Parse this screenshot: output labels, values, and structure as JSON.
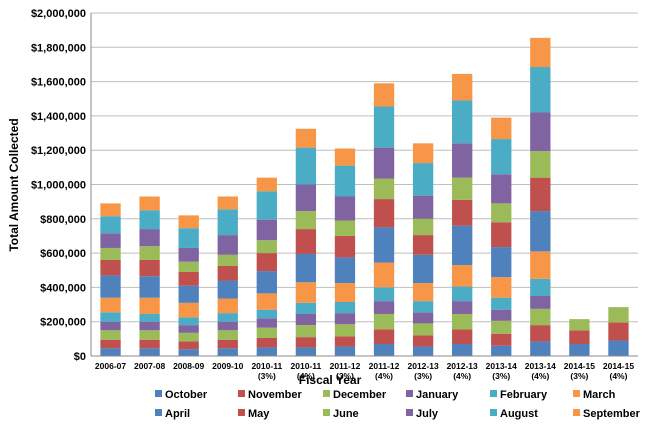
{
  "chart_data": {
    "type": "bar",
    "stacked": true,
    "xlabel": "Fiscal Year",
    "ylabel": "Total Amount Collected",
    "ylim": [
      0,
      2000000
    ],
    "y_ticks": [
      0,
      200000,
      400000,
      600000,
      800000,
      1000000,
      1200000,
      1400000,
      1600000,
      1800000,
      2000000
    ],
    "y_tick_labels": [
      "$0",
      "$200,000",
      "$400,000",
      "$600,000",
      "$800,000",
      "$1,000,000",
      "$1,200,000",
      "$1,400,000",
      "$1,600,000",
      "$1,800,000",
      "$2,000,000"
    ],
    "grid": "horizontal",
    "legend_position": "bottom",
    "categories": [
      [
        "2006-07"
      ],
      [
        "2007-08"
      ],
      [
        "2008-09"
      ],
      [
        "2009-10"
      ],
      [
        "2010-11",
        "(3%)"
      ],
      [
        "2010-11",
        "(4%)"
      ],
      [
        "2011-12",
        "(3%)"
      ],
      [
        "2011-12",
        "(4%)"
      ],
      [
        "2012-13",
        "(3%)"
      ],
      [
        "2012-13",
        "(4%)"
      ],
      [
        "2013-14",
        "(3%)"
      ],
      [
        "2013-14",
        "(4%)"
      ],
      [
        "2014-15",
        "(3%)"
      ],
      [
        "2014-15",
        "(4%)"
      ]
    ],
    "series": [
      {
        "name": "October",
        "color": "#4F81BD",
        "values": [
          45000,
          45000,
          40000,
          45000,
          50000,
          50000,
          55000,
          70000,
          55000,
          70000,
          60000,
          85000,
          70000,
          90000
        ]
      },
      {
        "name": "November",
        "color": "#C0504D",
        "values": [
          50000,
          50000,
          45000,
          50000,
          55000,
          60000,
          60000,
          85000,
          65000,
          85000,
          70000,
          95000,
          80000,
          105000
        ]
      },
      {
        "name": "December",
        "color": "#9BBB59",
        "values": [
          55000,
          55000,
          50000,
          55000,
          60000,
          70000,
          70000,
          90000,
          70000,
          90000,
          75000,
          95000,
          65000,
          90000
        ]
      },
      {
        "name": "January",
        "color": "#8064A2",
        "values": [
          50000,
          50000,
          45000,
          50000,
          55000,
          65000,
          65000,
          75000,
          65000,
          75000,
          65000,
          75000,
          0,
          0
        ]
      },
      {
        "name": "February",
        "color": "#4BACC6",
        "values": [
          55000,
          45000,
          45000,
          50000,
          50000,
          65000,
          65000,
          80000,
          65000,
          85000,
          70000,
          100000,
          0,
          0
        ]
      },
      {
        "name": "March",
        "color": "#F79646",
        "values": [
          85000,
          95000,
          85000,
          85000,
          95000,
          120000,
          110000,
          145000,
          105000,
          125000,
          120000,
          160000,
          0,
          0
        ]
      },
      {
        "name": "April",
        "color": "#4F81BD",
        "values": [
          130000,
          125000,
          100000,
          105000,
          130000,
          165000,
          150000,
          205000,
          165000,
          230000,
          175000,
          235000,
          0,
          0
        ]
      },
      {
        "name": "May",
        "color": "#C0504D",
        "values": [
          90000,
          95000,
          80000,
          85000,
          105000,
          145000,
          125000,
          165000,
          115000,
          150000,
          145000,
          195000,
          0,
          0
        ]
      },
      {
        "name": "June",
        "color": "#9BBB59",
        "values": [
          70000,
          80000,
          60000,
          65000,
          75000,
          105000,
          90000,
          120000,
          95000,
          130000,
          110000,
          155000,
          0,
          0
        ]
      },
      {
        "name": "July",
        "color": "#8064A2",
        "values": [
          85000,
          100000,
          80000,
          115000,
          120000,
          155000,
          140000,
          180000,
          135000,
          200000,
          170000,
          225000,
          0,
          0
        ]
      },
      {
        "name": "August",
        "color": "#4BACC6",
        "values": [
          100000,
          110000,
          115000,
          150000,
          165000,
          215000,
          180000,
          240000,
          190000,
          250000,
          205000,
          265000,
          0,
          0
        ]
      },
      {
        "name": "September",
        "color": "#F79646",
        "values": [
          75000,
          80000,
          75000,
          75000,
          80000,
          110000,
          100000,
          135000,
          115000,
          155000,
          125000,
          170000,
          0,
          0
        ]
      }
    ]
  }
}
